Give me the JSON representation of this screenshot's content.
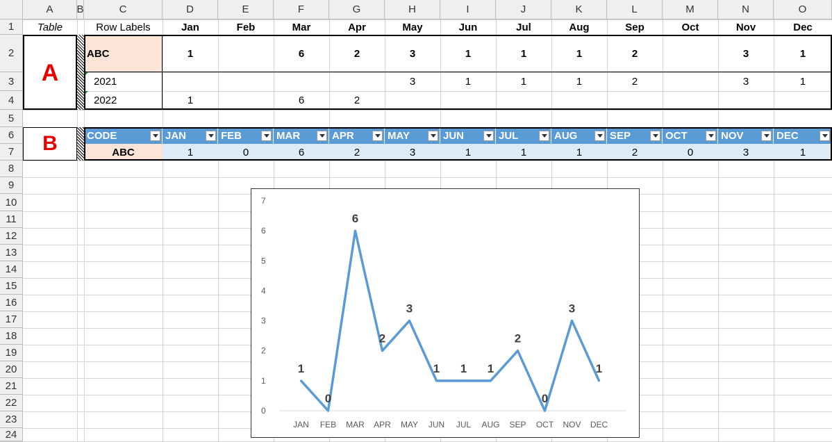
{
  "columns": [
    "A",
    "B",
    "C",
    "D",
    "E",
    "F",
    "G",
    "H",
    "I",
    "J",
    "K",
    "L",
    "M",
    "N",
    "O"
  ],
  "rows": [
    "1",
    "2",
    "3",
    "4",
    "5",
    "6",
    "7",
    "8",
    "9",
    "10",
    "11",
    "12",
    "13",
    "14",
    "15",
    "16",
    "17",
    "18",
    "19",
    "20",
    "21",
    "22",
    "23",
    "24"
  ],
  "pivot": {
    "a1": "Table",
    "row_labels": "Row Labels",
    "months": [
      "Jan",
      "Feb",
      "Mar",
      "Apr",
      "May",
      "Jun",
      "Jul",
      "Aug",
      "Sep",
      "Oct",
      "Nov",
      "Dec"
    ],
    "section_label": "A",
    "abc": {
      "label": "ABC",
      "values": [
        "1",
        "",
        "6",
        "2",
        "3",
        "1",
        "1",
        "1",
        "2",
        "",
        "3",
        "1"
      ]
    },
    "y2021": {
      "label": "2021",
      "values": [
        "",
        "",
        "",
        "",
        "3",
        "1",
        "1",
        "1",
        "2",
        "",
        "3",
        "1"
      ]
    },
    "y2022": {
      "label": "2022",
      "values": [
        "1",
        "",
        "6",
        "2",
        "",
        "",
        "",
        "",
        "",
        "",
        "",
        ""
      ]
    }
  },
  "table_b": {
    "section_label": "B",
    "headers": [
      "CODE",
      "JAN",
      "FEB",
      "MAR",
      "APR",
      "MAY",
      "JUN",
      "JUL",
      "AUG",
      "SEP",
      "OCT",
      "NOV",
      "DEC"
    ],
    "row": {
      "code": "ABC",
      "values": [
        "1",
        "0",
        "6",
        "2",
        "3",
        "1",
        "1",
        "1",
        "2",
        "0",
        "3",
        "1"
      ]
    }
  },
  "colors": {
    "accent": "#5b9bd5",
    "pivot_fill": "#fce4d6",
    "label_red": "#e60000"
  },
  "chart_data": {
    "type": "line",
    "categories": [
      "JAN",
      "FEB",
      "MAR",
      "APR",
      "MAY",
      "JUN",
      "JUL",
      "AUG",
      "SEP",
      "OCT",
      "NOV",
      "DEC"
    ],
    "series": [
      {
        "values": [
          1,
          0,
          6,
          2,
          3,
          1,
          1,
          1,
          2,
          0,
          3,
          1
        ]
      }
    ],
    "ylim": [
      0,
      7
    ],
    "yticks": [
      "0",
      "1",
      "2",
      "3",
      "4",
      "5",
      "6",
      "7"
    ],
    "data_labels": [
      "1",
      "0",
      "6",
      "2",
      "3",
      "1",
      "1",
      "1",
      "2",
      "0",
      "3",
      "1"
    ],
    "color": "#5b9bd5",
    "grid": false,
    "legend": "none"
  }
}
